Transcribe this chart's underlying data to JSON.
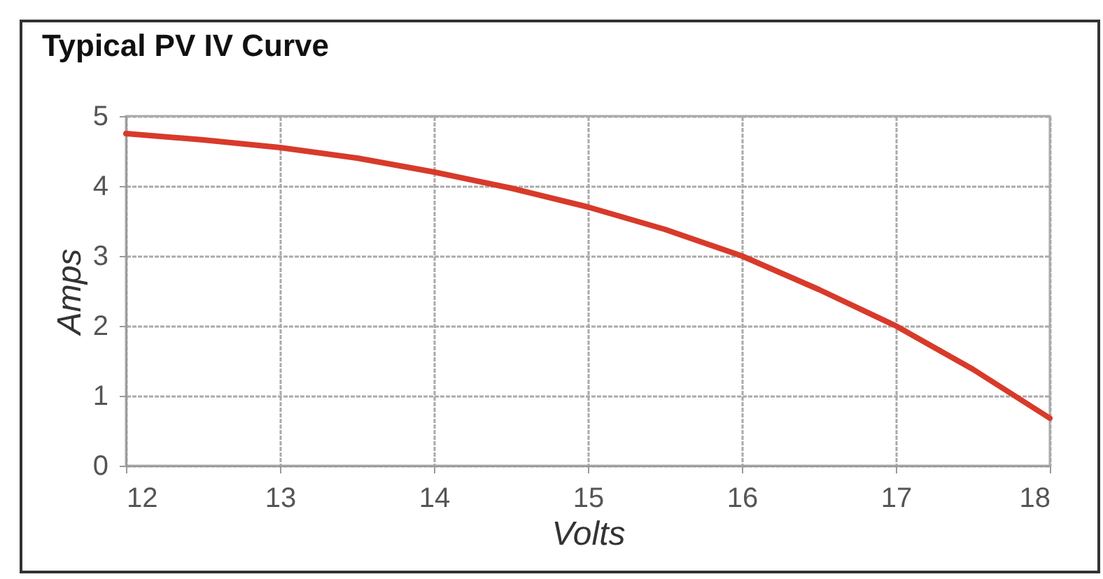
{
  "chart_data": {
    "type": "line",
    "title": "Typical PV IV Curve",
    "xlabel": "Volts",
    "ylabel": "Amps",
    "x": [
      12,
      12.5,
      13,
      13.5,
      14,
      14.5,
      15,
      15.5,
      16,
      16.5,
      17,
      17.5,
      18
    ],
    "series": [
      {
        "color": "#d83a2a",
        "values": [
          4.75,
          4.66,
          4.55,
          4.4,
          4.2,
          3.97,
          3.7,
          3.38,
          3.0,
          2.52,
          2.0,
          1.38,
          0.68
        ]
      }
    ],
    "xlim": [
      12,
      18
    ],
    "xticks": [
      12,
      13,
      14,
      15,
      16,
      17,
      18
    ],
    "ylim": [
      0,
      5
    ],
    "yticks": [
      0,
      1,
      2,
      3,
      4,
      5
    ],
    "grid": true,
    "marker": "none",
    "line_style": "solid"
  }
}
